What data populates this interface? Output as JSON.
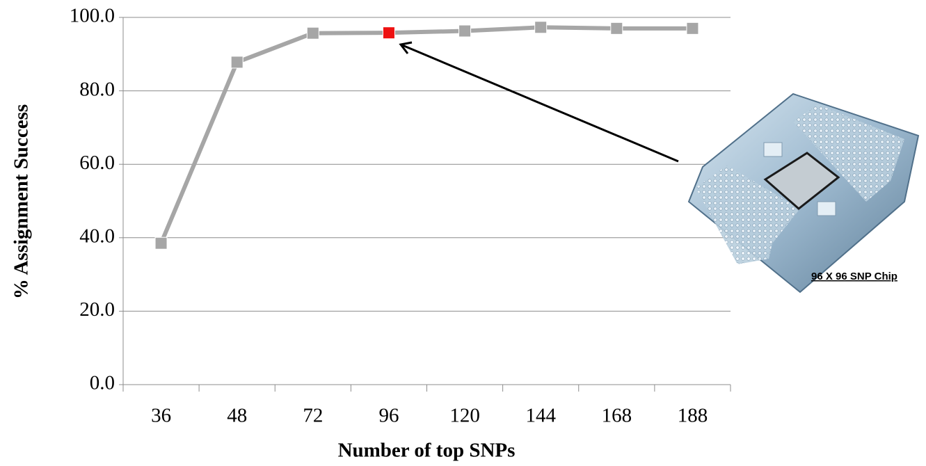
{
  "chart_data": {
    "type": "line",
    "categories": [
      "36",
      "48",
      "72",
      "96",
      "120",
      "144",
      "168",
      "188"
    ],
    "values": [
      38.5,
      87.8,
      95.7,
      95.8,
      96.3,
      97.3,
      97.0,
      97.0
    ],
    "color": "#a6a6a6",
    "highlight_index": 3,
    "highlight_color": "#ee1111",
    "ylim": [
      0,
      100
    ],
    "yticks": [
      {
        "value": 0,
        "label": "0.0"
      },
      {
        "value": 20,
        "label": "20.0"
      },
      {
        "value": 40,
        "label": "40.0"
      },
      {
        "value": 60,
        "label": "60.0"
      },
      {
        "value": 80,
        "label": "80.0"
      },
      {
        "value": 100,
        "label": "100.0"
      }
    ],
    "grid": true,
    "xlabel": "Number of top SNPs",
    "ylabel": "% Assignment Success",
    "annotation": "96 X 96 SNP Chip"
  }
}
